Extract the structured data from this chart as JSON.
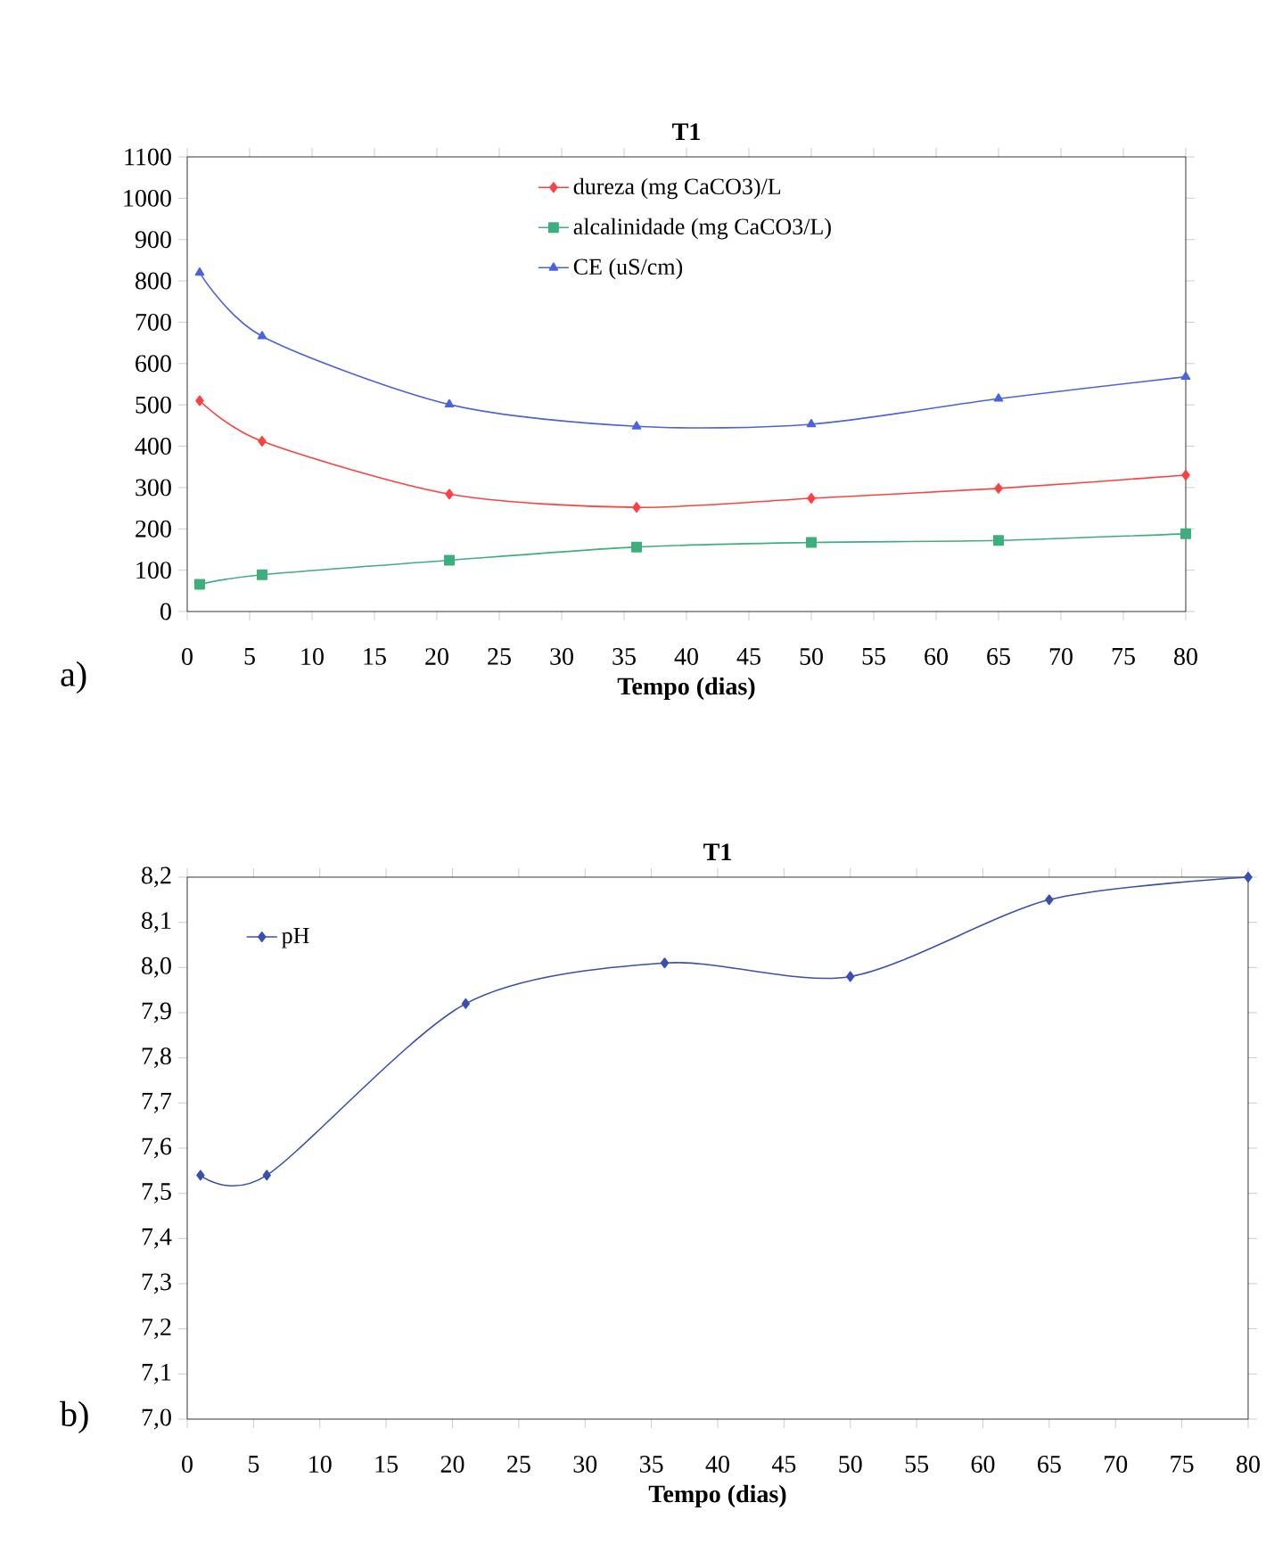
{
  "chart_data": [
    {
      "type": "line",
      "title": "T1",
      "xlabel": "Tempo (dias)",
      "x": [
        1,
        6,
        21,
        36,
        50,
        65,
        80
      ],
      "xlim": [
        0,
        80
      ],
      "xticks": [
        0,
        5,
        10,
        15,
        20,
        25,
        30,
        35,
        40,
        45,
        50,
        55,
        60,
        65,
        70,
        75,
        80
      ],
      "ylim": [
        0,
        1100
      ],
      "yticks": [
        0,
        100,
        200,
        300,
        400,
        500,
        600,
        700,
        800,
        900,
        1000,
        1100
      ],
      "grid": false,
      "legend": "top",
      "annotations": [
        "a)"
      ],
      "series": [
        {
          "name": "dureza (mg CaCO3)/L",
          "color": "#ff4040",
          "marker": "diamond",
          "values": [
            510,
            412,
            284,
            252,
            274,
            298,
            330
          ]
        },
        {
          "name": "alcalinidade (mg CaCO3/L)",
          "color": "#3fae7f",
          "marker": "square",
          "values": [
            66,
            89,
            124,
            156,
            167,
            172,
            188
          ]
        },
        {
          "name": "CE (uS/cm)",
          "color": "#4a63e0",
          "marker": "triangle",
          "values": [
            820,
            666,
            501,
            448,
            453,
            515,
            568
          ]
        }
      ]
    },
    {
      "type": "line",
      "title": "T1",
      "xlabel": "Tempo (dias)",
      "x": [
        1,
        6,
        21,
        36,
        50,
        65,
        80
      ],
      "xlim": [
        0,
        80
      ],
      "xticks": [
        0,
        5,
        10,
        15,
        20,
        25,
        30,
        35,
        40,
        45,
        50,
        55,
        60,
        65,
        70,
        75,
        80
      ],
      "ylim": [
        7.0,
        8.2
      ],
      "yticks": [
        {
          "value": 7.0,
          "label": "7,0"
        },
        {
          "value": 7.1,
          "label": "7,1"
        },
        {
          "value": 7.2,
          "label": "7,2"
        },
        {
          "value": 7.3,
          "label": "7,3"
        },
        {
          "value": 7.4,
          "label": "7,4"
        },
        {
          "value": 7.5,
          "label": "7,5"
        },
        {
          "value": 7.6,
          "label": "7,6"
        },
        {
          "value": 7.7,
          "label": "7,7"
        },
        {
          "value": 7.8,
          "label": "7,8"
        },
        {
          "value": 7.9,
          "label": "7,9"
        },
        {
          "value": 8.0,
          "label": "8,0"
        },
        {
          "value": 8.1,
          "label": "8,1"
        },
        {
          "value": 8.2,
          "label": "8,2"
        }
      ],
      "grid": false,
      "legend": "top left",
      "annotations": [
        "b)"
      ],
      "series": [
        {
          "name": "pH",
          "color": "#3a4fb0",
          "marker": "diamond",
          "values": [
            7.54,
            7.54,
            7.92,
            8.01,
            7.98,
            8.15,
            8.2
          ]
        }
      ]
    }
  ]
}
